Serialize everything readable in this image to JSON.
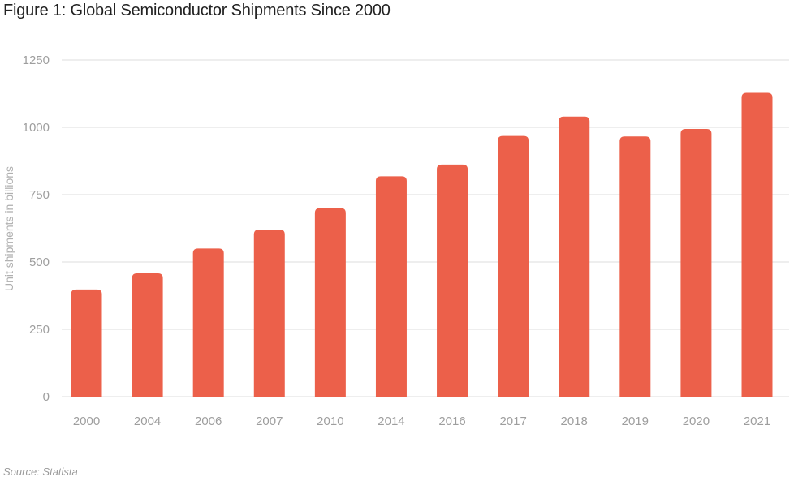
{
  "title": "Figure 1: Global Semiconductor Shipments Since 2000",
  "source": "Source: Statista",
  "colors": {
    "bar": "#ec604a",
    "grid": "#dddddd",
    "tick_text": "#9e9e9e",
    "title_text": "#222222"
  },
  "chart_data": {
    "type": "bar",
    "title": "Figure 1: Global Semiconductor Shipments Since 2000",
    "xlabel": "",
    "ylabel": "Unit shipments in billions",
    "categories": [
      "2000",
      "2004",
      "2006",
      "2007",
      "2010",
      "2014",
      "2016",
      "2017",
      "2018",
      "2019",
      "2020",
      "2021"
    ],
    "values": [
      398,
      458,
      550,
      620,
      700,
      818,
      862,
      968,
      1040,
      966,
      994,
      1128
    ],
    "ylim": [
      0,
      1250
    ],
    "yticks": [
      0,
      250,
      500,
      750,
      1000,
      1250
    ],
    "grid": true,
    "legend": "none"
  }
}
